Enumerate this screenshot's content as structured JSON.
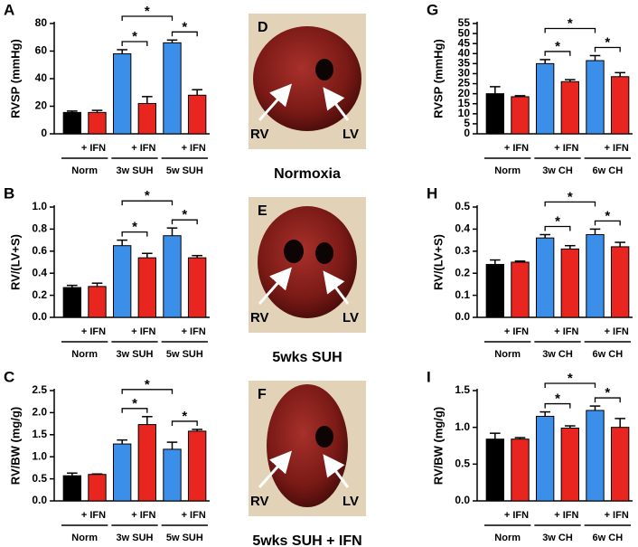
{
  "chart_data": [
    {
      "type": "bar",
      "panel": "A",
      "y_label": "RVSP (mmHg)",
      "categories": [
        null,
        "+ IFN",
        null,
        "+ IFN",
        null,
        "+ IFN"
      ],
      "groups": [
        "Norm",
        "3w SUH",
        "5w SUH"
      ],
      "values": [
        15.5,
        15.5,
        58,
        22,
        66,
        28
      ],
      "errors": [
        1,
        1.5,
        3,
        5,
        2,
        4
      ],
      "colors": [
        "#000000",
        "#e8251f",
        "#3b8fe8",
        "#e8251f",
        "#3b8fe8",
        "#e8251f"
      ],
      "ylim": [
        0,
        80
      ],
      "yticks": [
        0,
        20,
        40,
        60,
        80
      ],
      "significance": [
        {
          "from": 2,
          "to": 3,
          "label": "*"
        },
        {
          "from": 4,
          "to": 5,
          "label": "*"
        },
        {
          "from": 2,
          "to": 4,
          "label": "*"
        }
      ]
    },
    {
      "type": "bar",
      "panel": "B",
      "y_label": "RV/(LV+S)",
      "categories": [
        null,
        "+ IFN",
        null,
        "+ IFN",
        null,
        "+ IFN"
      ],
      "groups": [
        "Norm",
        "3w SUH",
        "5w SUH"
      ],
      "values": [
        0.27,
        0.28,
        0.65,
        0.54,
        0.74,
        0.54
      ],
      "errors": [
        0.02,
        0.03,
        0.05,
        0.04,
        0.07,
        0.02
      ],
      "colors": [
        "#000000",
        "#e8251f",
        "#3b8fe8",
        "#e8251f",
        "#3b8fe8",
        "#e8251f"
      ],
      "ylim": [
        0,
        1.0
      ],
      "yticks": [
        {
          "value": 0,
          "label": "0.0"
        },
        0.2,
        0.4,
        0.6,
        0.8,
        {
          "value": 1,
          "label": "1.0"
        }
      ],
      "significance": [
        {
          "from": 2,
          "to": 3,
          "label": "*"
        },
        {
          "from": 4,
          "to": 5,
          "label": "*"
        },
        {
          "from": 2,
          "to": 4,
          "label": "*"
        }
      ]
    },
    {
      "type": "bar",
      "panel": "C",
      "y_label": "RV/BW (mg/g)",
      "categories": [
        null,
        "+ IFN",
        null,
        "+ IFN",
        null,
        "+ IFN"
      ],
      "groups": [
        "Norm",
        "3w SUH",
        "5w SUH"
      ],
      "values": [
        0.57,
        0.6,
        1.29,
        1.73,
        1.17,
        1.58
      ],
      "errors": [
        0.06,
        0.01,
        0.09,
        0.18,
        0.16,
        0.04
      ],
      "colors": [
        "#000000",
        "#e8251f",
        "#3b8fe8",
        "#e8251f",
        "#3b8fe8",
        "#e8251f"
      ],
      "ylim": [
        0,
        2.5
      ],
      "yticks": [
        {
          "value": 0,
          "label": "0.0"
        },
        0.5,
        {
          "value": 1,
          "label": "1.0"
        },
        1.5,
        {
          "value": 2,
          "label": "2.0"
        },
        2.5
      ],
      "significance": [
        {
          "from": 2,
          "to": 3,
          "label": "*"
        },
        {
          "from": 4,
          "to": 5,
          "label": "*"
        },
        {
          "from": 2,
          "to": 4,
          "label": "*"
        }
      ]
    },
    {
      "type": "bar",
      "panel": "G",
      "y_label": "RVSP (mmHg)",
      "categories": [
        null,
        "+ IFN",
        null,
        "+ IFN",
        null,
        "+ IFN"
      ],
      "groups": [
        "Norm",
        "3w CH",
        "6w CH"
      ],
      "values": [
        20,
        18.5,
        35,
        26,
        36.5,
        28.5
      ],
      "errors": [
        3.5,
        0.5,
        2,
        1,
        2.5,
        2
      ],
      "colors": [
        "#000000",
        "#e8251f",
        "#3b8fe8",
        "#e8251f",
        "#3b8fe8",
        "#e8251f"
      ],
      "ylim": [
        0,
        55
      ],
      "yticks": [
        0,
        5,
        10,
        15,
        20,
        25,
        30,
        35,
        40,
        45,
        50,
        55
      ],
      "significance": [
        {
          "from": 2,
          "to": 3,
          "label": "*"
        },
        {
          "from": 4,
          "to": 5,
          "label": "*"
        },
        {
          "from": 2,
          "to": 4,
          "label": "*"
        }
      ]
    },
    {
      "type": "bar",
      "panel": "H",
      "y_label": "RV/(LV+S)",
      "categories": [
        null,
        "+ IFN",
        null,
        "+ IFN",
        null,
        "+ IFN"
      ],
      "groups": [
        "Norm",
        "3w CH",
        "6w CH"
      ],
      "values": [
        0.24,
        0.25,
        0.36,
        0.31,
        0.375,
        0.32
      ],
      "errors": [
        0.02,
        0.005,
        0.015,
        0.015,
        0.025,
        0.02
      ],
      "colors": [
        "#000000",
        "#e8251f",
        "#3b8fe8",
        "#e8251f",
        "#3b8fe8",
        "#e8251f"
      ],
      "ylim": [
        0,
        0.5
      ],
      "yticks": [
        {
          "value": 0,
          "label": "0.0"
        },
        0.1,
        0.2,
        0.3,
        0.4,
        0.5
      ],
      "significance": [
        {
          "from": 2,
          "to": 3,
          "label": "*"
        },
        {
          "from": 4,
          "to": 5,
          "label": "*"
        },
        {
          "from": 2,
          "to": 4,
          "label": "*"
        }
      ]
    },
    {
      "type": "bar",
      "panel": "I",
      "y_label": "RV/BW (mg/g)",
      "categories": [
        null,
        "+ IFN",
        null,
        "+ IFN",
        null,
        "+ IFN"
      ],
      "groups": [
        "Norm",
        "3w CH",
        "6w CH"
      ],
      "values": [
        0.84,
        0.84,
        1.15,
        0.99,
        1.23,
        1.0
      ],
      "errors": [
        0.08,
        0.02,
        0.06,
        0.03,
        0.06,
        0.12
      ],
      "colors": [
        "#000000",
        "#e8251f",
        "#3b8fe8",
        "#e8251f",
        "#3b8fe8",
        "#e8251f"
      ],
      "ylim": [
        0,
        1.5
      ],
      "yticks": [
        {
          "value": 0,
          "label": "0.0"
        },
        0.5,
        {
          "value": 1,
          "label": "1.0"
        },
        1.5
      ],
      "significance": [
        {
          "from": 2,
          "to": 3,
          "label": "*"
        },
        {
          "from": 4,
          "to": 5,
          "label": "*"
        },
        {
          "from": 2,
          "to": 4,
          "label": "*"
        }
      ]
    }
  ],
  "photos": [
    {
      "panel": "D",
      "caption": "Normoxia",
      "labels": [
        "RV",
        "LV"
      ]
    },
    {
      "panel": "E",
      "caption": "5wks SUH",
      "labels": [
        "RV",
        "LV"
      ]
    },
    {
      "panel": "F",
      "caption": "5wks SUH + IFN",
      "labels": [
        "RV",
        "LV"
      ]
    }
  ]
}
